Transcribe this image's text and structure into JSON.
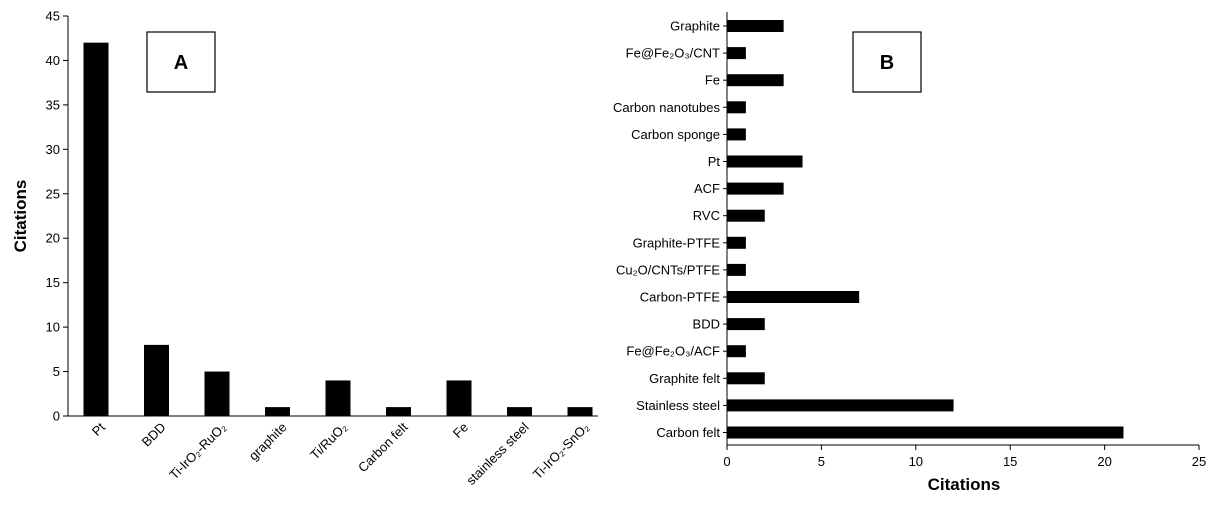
{
  "chart_data": [
    {
      "panel": "A",
      "type": "bar",
      "orientation": "vertical",
      "categories": [
        "Pt",
        "BDD",
        "Ti-IrO₂-RuO₂",
        "graphite",
        "Ti/RuO₂",
        "Carbon felt",
        "Fe",
        "stainless steel",
        "Ti-IrO₂-SnO₂"
      ],
      "values": [
        42,
        8,
        5,
        1,
        4,
        1,
        4,
        1,
        1
      ],
      "xlabel": "",
      "ylabel": "Citations",
      "ylim": [
        0,
        45
      ],
      "yticks": [
        0,
        5,
        10,
        15,
        20,
        25,
        30,
        35,
        40,
        45
      ],
      "bar_color": "#000000",
      "grid": false,
      "legend": "none"
    },
    {
      "panel": "B",
      "type": "bar",
      "orientation": "horizontal",
      "categories": [
        "Graphite",
        "Fe@Fe₂O₃/CNT",
        "Fe",
        "Carbon nanotubes",
        "Carbon sponge",
        "Pt",
        "ACF",
        "RVC",
        "Graphite-PTFE",
        "Cu₂O/CNTs/PTFE",
        "Carbon-PTFE",
        "BDD",
        "Fe@Fe₂O₃/ACF",
        "Graphite felt",
        "Stainless steel",
        "Carbon felt"
      ],
      "values": [
        3,
        1,
        3,
        1,
        1,
        4,
        3,
        2,
        1,
        1,
        7,
        2,
        1,
        2,
        12,
        21
      ],
      "xlabel": "Citations",
      "ylabel": "",
      "xlim": [
        0,
        25
      ],
      "xticks": [
        0,
        5,
        10,
        15,
        20,
        25
      ],
      "bar_color": "#000000",
      "grid": false,
      "legend": "none"
    }
  ]
}
